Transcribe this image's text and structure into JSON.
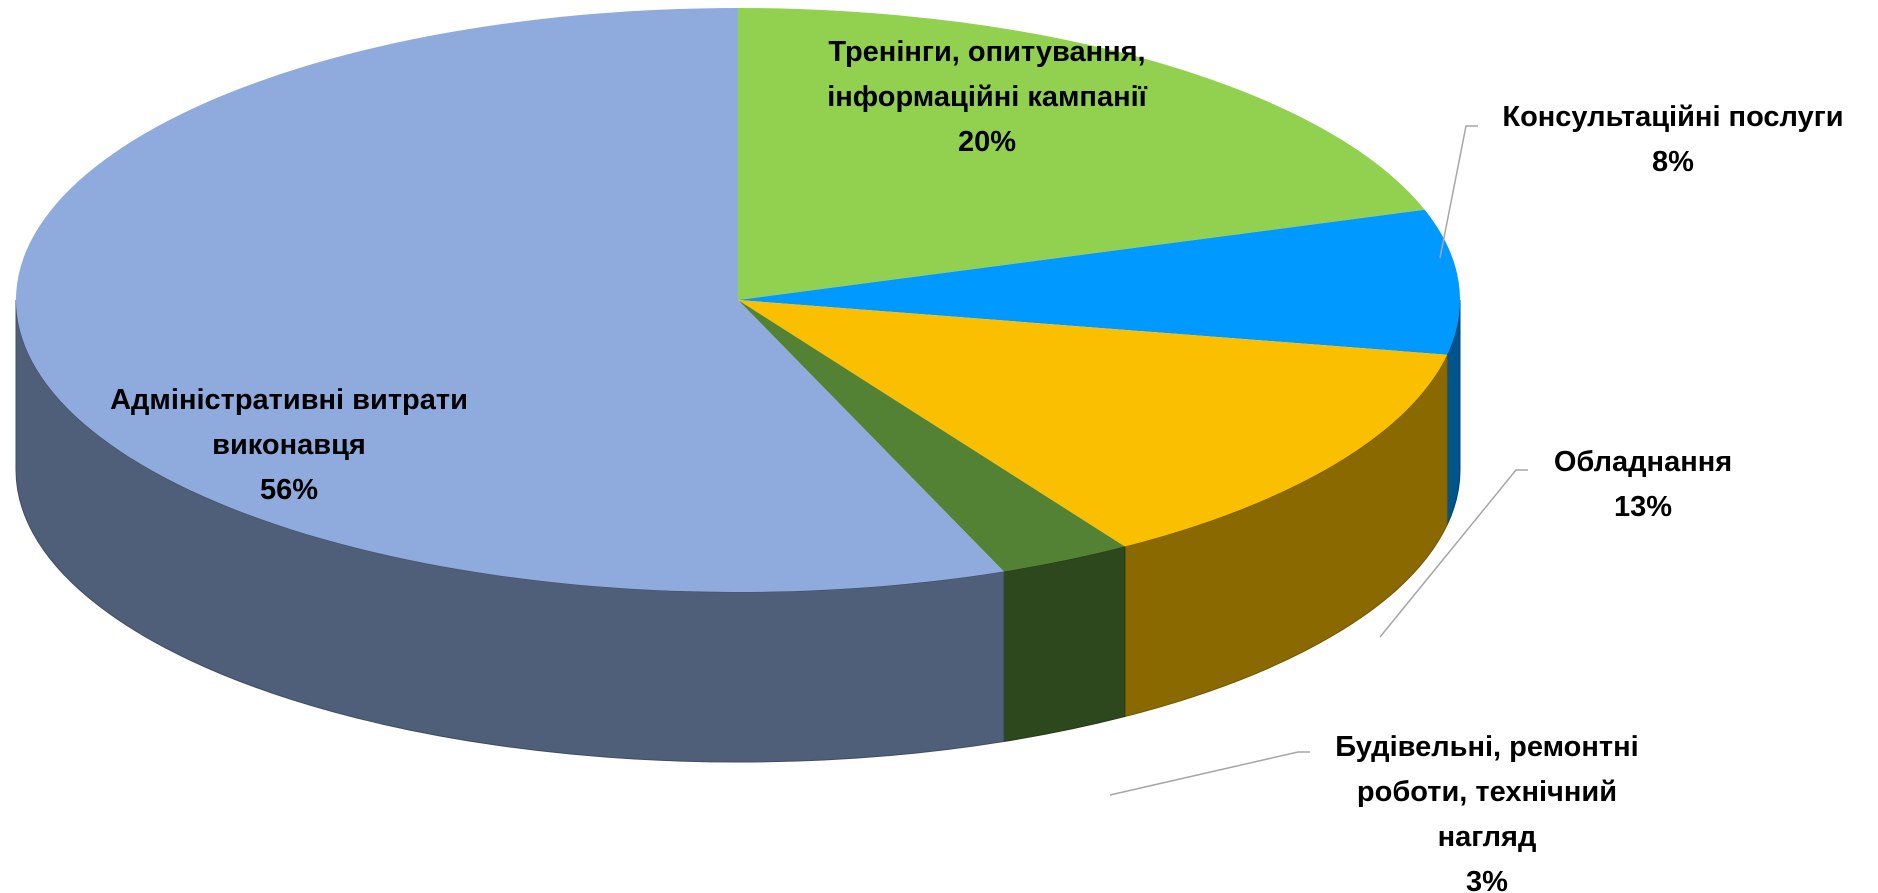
{
  "chart_data": {
    "type": "pie",
    "categories": [
      "Тренінги, опитування, інформаційні кампанії",
      "Консультаційні послуги",
      "Обладнання",
      "Будівельні, ремонтні роботи, технічний нагляд",
      "Адміністративні витрати виконавця"
    ],
    "values": [
      20,
      8,
      13,
      3,
      56
    ],
    "value_labels": [
      "20%",
      "8%",
      "13%",
      "3%",
      "56%"
    ],
    "colors": [
      "#92d050",
      "#0099ff",
      "#fac000",
      "#548235",
      "#8faadc"
    ]
  }
}
